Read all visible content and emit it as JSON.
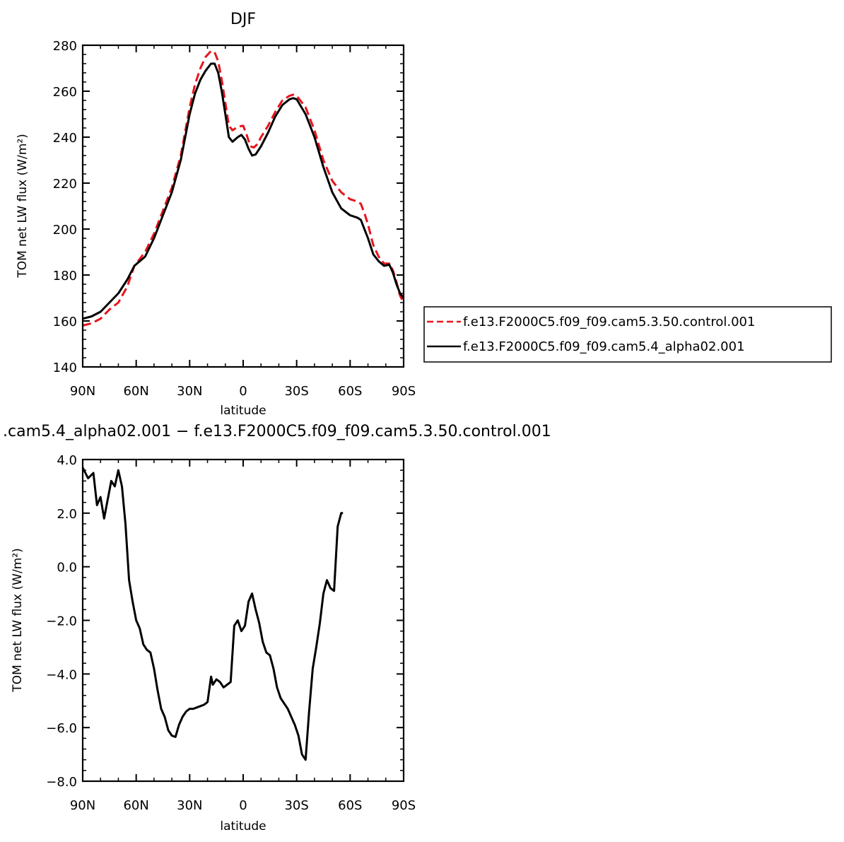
{
  "chart_data": [
    {
      "type": "line",
      "title": "DJF",
      "xlabel": "latitude",
      "ylabel": "TOM net LW flux (W/m²)",
      "xlim": [
        90,
        -90
      ],
      "ylim": [
        140,
        280
      ],
      "x_ticks": [
        90,
        60,
        30,
        0,
        -30,
        -60,
        -90
      ],
      "x_tick_labels": [
        "90N",
        "60N",
        "30N",
        "0",
        "30S",
        "60S",
        "90S"
      ],
      "y_ticks": [
        140,
        160,
        180,
        200,
        220,
        240,
        260,
        280
      ],
      "y_tick_labels": [
        "140",
        "160",
        "180",
        "200",
        "220",
        "240",
        "260",
        "280"
      ],
      "grid": false,
      "legend_position": "right",
      "series": [
        {
          "name": "f.e13.F2000C5.f09_f09.cam5.3.50.control.001",
          "color": "#e8141b",
          "dash": "dashed",
          "points": [
            [
              90,
              158
            ],
            [
              85,
              159
            ],
            [
              80,
              161
            ],
            [
              75,
              165
            ],
            [
              70,
              168
            ],
            [
              65,
              175
            ],
            [
              61,
              184
            ],
            [
              55,
              190
            ],
            [
              50,
              198
            ],
            [
              45,
              208
            ],
            [
              40,
              218
            ],
            [
              35,
              232
            ],
            [
              30,
              253
            ],
            [
              27,
              263
            ],
            [
              24,
              270
            ],
            [
              21,
              275
            ],
            [
              18,
              277.5
            ],
            [
              16,
              277
            ],
            [
              14,
              273
            ],
            [
              12,
              265
            ],
            [
              10,
              255
            ],
            [
              8,
              245
            ],
            [
              6,
              243
            ],
            [
              3,
              244.5
            ],
            [
              0,
              245
            ],
            [
              -2,
              241
            ],
            [
              -4,
              236
            ],
            [
              -6,
              235.5
            ],
            [
              -8,
              237
            ],
            [
              -10,
              240
            ],
            [
              -14,
              245
            ],
            [
              -18,
              251
            ],
            [
              -22,
              256
            ],
            [
              -26,
              258
            ],
            [
              -28,
              258.5
            ],
            [
              -30,
              258
            ],
            [
              -35,
              253
            ],
            [
              -40,
              243
            ],
            [
              -45,
              230
            ],
            [
              -50,
              221
            ],
            [
              -55,
              216
            ],
            [
              -60,
              213
            ],
            [
              -64,
              212
            ],
            [
              -66,
              211
            ],
            [
              -68,
              207
            ],
            [
              -70,
              202
            ],
            [
              -73,
              193
            ],
            [
              -76,
              188
            ],
            [
              -79,
              185
            ],
            [
              -82,
              185
            ],
            [
              -84,
              182
            ],
            [
              -86,
              177
            ],
            [
              -88,
              171
            ],
            [
              -90,
              168
            ]
          ]
        },
        {
          "name": "f.e13.F2000C5.f09_f09.cam5.4_alpha02.001",
          "color": "#000000",
          "dash": "solid",
          "points": [
            [
              90,
              161
            ],
            [
              85,
              162
            ],
            [
              80,
              164
            ],
            [
              75,
              168
            ],
            [
              70,
              172
            ],
            [
              65,
              178
            ],
            [
              61,
              184
            ],
            [
              55,
              188
            ],
            [
              50,
              196
            ],
            [
              45,
              206
            ],
            [
              40,
              216
            ],
            [
              35,
              230
            ],
            [
              30,
              250
            ],
            [
              27,
              259
            ],
            [
              24,
              265
            ],
            [
              21,
              269
            ],
            [
              18,
              272
            ],
            [
              16,
              272
            ],
            [
              14,
              268
            ],
            [
              12,
              260
            ],
            [
              10,
              250
            ],
            [
              8,
              240
            ],
            [
              6,
              238
            ],
            [
              3,
              240
            ],
            [
              1,
              241
            ],
            [
              -1,
              239
            ],
            [
              -3,
              235
            ],
            [
              -5,
              232
            ],
            [
              -7,
              232.5
            ],
            [
              -10,
              236
            ],
            [
              -14,
              242
            ],
            [
              -18,
              249
            ],
            [
              -22,
              254
            ],
            [
              -26,
              256.5
            ],
            [
              -28,
              257
            ],
            [
              -30,
              256.5
            ],
            [
              -35,
              250
            ],
            [
              -40,
              240
            ],
            [
              -45,
              227
            ],
            [
              -50,
              216
            ],
            [
              -55,
              209
            ],
            [
              -60,
              206
            ],
            [
              -64,
              205
            ],
            [
              -66,
              204
            ],
            [
              -68,
              200
            ],
            [
              -70,
              196
            ],
            [
              -73,
              189
            ],
            [
              -76,
              186
            ],
            [
              -79,
              184
            ],
            [
              -82,
              184.5
            ],
            [
              -84,
              181
            ],
            [
              -86,
              176
            ],
            [
              -88,
              172
            ],
            [
              -90,
              170
            ]
          ]
        }
      ]
    },
    {
      "type": "line",
      "title": ".cam5.4_alpha02.001 − f.e13.F2000C5.f09_f09.cam5.3.50.control.001",
      "xlabel": "latitude",
      "ylabel": "TOM net LW flux (W/m²)",
      "xlim": [
        90,
        -90
      ],
      "ylim": [
        -8,
        4
      ],
      "x_ticks": [
        90,
        60,
        30,
        0,
        -30,
        -60,
        -90
      ],
      "x_tick_labels": [
        "90N",
        "60N",
        "30N",
        "0",
        "30S",
        "60S",
        "90S"
      ],
      "y_ticks": [
        -8,
        -6,
        -4,
        -2,
        0,
        2,
        4
      ],
      "y_tick_labels": [
        "−8.0",
        "−6.0",
        "−4.0",
        "−2.0",
        "0.0",
        "2.0",
        "4.0"
      ],
      "grid": false,
      "series": [
        {
          "color": "#000000",
          "dash": "solid",
          "points": [
            [
              90,
              3.7
            ],
            [
              87,
              3.3
            ],
            [
              84,
              3.5
            ],
            [
              82,
              2.3
            ],
            [
              80,
              2.6
            ],
            [
              78,
              1.8
            ],
            [
              76,
              2.5
            ],
            [
              74,
              3.2
            ],
            [
              72,
              3.0
            ],
            [
              70,
              3.6
            ],
            [
              68,
              3.0
            ],
            [
              66,
              1.6
            ],
            [
              64,
              -0.5
            ],
            [
              62,
              -1.3
            ],
            [
              60,
              -2.0
            ],
            [
              58,
              -2.3
            ],
            [
              56,
              -2.9
            ],
            [
              54,
              -3.1
            ],
            [
              52,
              -3.2
            ],
            [
              50,
              -3.8
            ],
            [
              48,
              -4.6
            ],
            [
              46,
              -5.3
            ],
            [
              44,
              -5.6
            ],
            [
              42,
              -6.1
            ],
            [
              40,
              -6.3
            ],
            [
              38,
              -6.35
            ],
            [
              36,
              -5.9
            ],
            [
              34,
              -5.6
            ],
            [
              32,
              -5.4
            ],
            [
              30,
              -5.3
            ],
            [
              28,
              -5.3
            ],
            [
              26,
              -5.25
            ],
            [
              24,
              -5.2
            ],
            [
              22,
              -5.15
            ],
            [
              20,
              -5.05
            ],
            [
              18,
              -4.1
            ],
            [
              17,
              -4.4
            ],
            [
              15,
              -4.2
            ],
            [
              13,
              -4.3
            ],
            [
              11,
              -4.5
            ],
            [
              9,
              -4.4
            ],
            [
              7,
              -4.3
            ],
            [
              5,
              -2.2
            ],
            [
              3,
              -2.0
            ],
            [
              1,
              -2.4
            ],
            [
              -1,
              -2.2
            ],
            [
              -3,
              -1.3
            ],
            [
              -5,
              -1.0
            ],
            [
              -7,
              -1.6
            ],
            [
              -9,
              -2.1
            ],
            [
              -11,
              -2.8
            ],
            [
              -13,
              -3.2
            ],
            [
              -15,
              -3.3
            ],
            [
              -17,
              -3.8
            ],
            [
              -19,
              -4.5
            ],
            [
              -21,
              -4.9
            ],
            [
              -23,
              -5.1
            ],
            [
              -25,
              -5.3
            ],
            [
              -27,
              -5.6
            ],
            [
              -29,
              -5.9
            ],
            [
              -31,
              -6.3
            ],
            [
              -33,
              -7.0
            ],
            [
              -35,
              -7.2
            ],
            [
              -37,
              -5.4
            ],
            [
              -39,
              -3.8
            ],
            [
              -41,
              -3.0
            ],
            [
              -43,
              -2.1
            ],
            [
              -45,
              -1.0
            ],
            [
              -47,
              -0.5
            ],
            [
              -49,
              -0.8
            ],
            [
              -51,
              -0.9
            ],
            [
              -53,
              1.5
            ],
            [
              -55,
              2.0
            ],
            [
              -56,
              2.0
            ]
          ]
        }
      ]
    }
  ]
}
